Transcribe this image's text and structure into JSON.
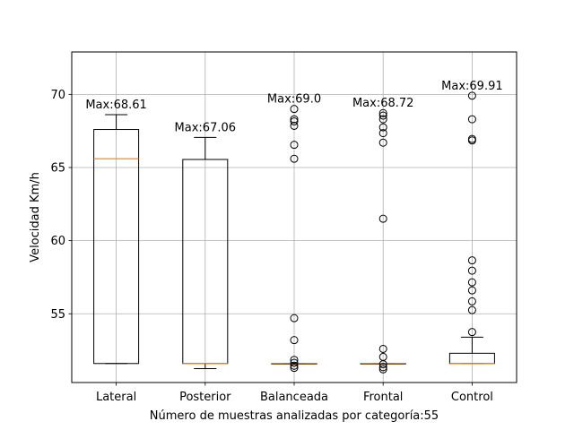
{
  "chart_data": {
    "type": "boxplot",
    "title": "",
    "xlabel": "Número de muestras analizadas por categoría:55",
    "ylabel": "Velocidad Km/h",
    "ylim": [
      50.3,
      72.9
    ],
    "yticks": [
      55,
      60,
      65,
      70
    ],
    "ytick_labels": [
      "55",
      "60",
      "65",
      "70"
    ],
    "grid": true,
    "colors": {
      "box": "#000000",
      "median": "#ff7f0e",
      "grid": "#b0b0b0"
    },
    "categories": [
      "Lateral",
      "Posterior",
      "Balanceada",
      "Frontal",
      "Control"
    ],
    "boxes": [
      {
        "category": "Lateral",
        "whisker_low": 51.6,
        "q1": 51.6,
        "median": 65.6,
        "q3": 67.6,
        "whisker_high": 68.61,
        "outliers": [],
        "annotation": "Max:68.61"
      },
      {
        "category": "Posterior",
        "whisker_low": 51.25,
        "q1": 51.6,
        "median": 51.6,
        "q3": 65.55,
        "whisker_high": 67.06,
        "outliers": [],
        "annotation": "Max:67.06"
      },
      {
        "category": "Balanceada",
        "whisker_low": 51.6,
        "q1": 51.6,
        "median": 51.6,
        "q3": 51.6,
        "whisker_high": 51.6,
        "outliers": [
          69.0,
          68.3,
          68.15,
          67.85,
          66.55,
          65.6,
          54.7,
          53.2,
          51.85,
          51.65,
          51.45,
          51.3
        ],
        "annotation": "Max:69.0"
      },
      {
        "category": "Frontal",
        "whisker_low": 51.6,
        "q1": 51.6,
        "median": 51.6,
        "q3": 51.6,
        "whisker_high": 51.6,
        "outliers": [
          68.72,
          68.55,
          68.3,
          67.75,
          67.35,
          66.7,
          61.5,
          52.6,
          52.05,
          51.55,
          51.35,
          51.2
        ],
        "annotation": "Max:68.72"
      },
      {
        "category": "Control",
        "whisker_low": 51.6,
        "q1": 51.6,
        "median": 51.6,
        "q3": 52.3,
        "whisker_high": 53.4,
        "outliers": [
          69.91,
          68.3,
          66.95,
          66.85,
          58.65,
          57.95,
          57.15,
          56.6,
          55.85,
          55.25,
          53.75
        ],
        "annotation": "Max:69.91"
      }
    ]
  }
}
